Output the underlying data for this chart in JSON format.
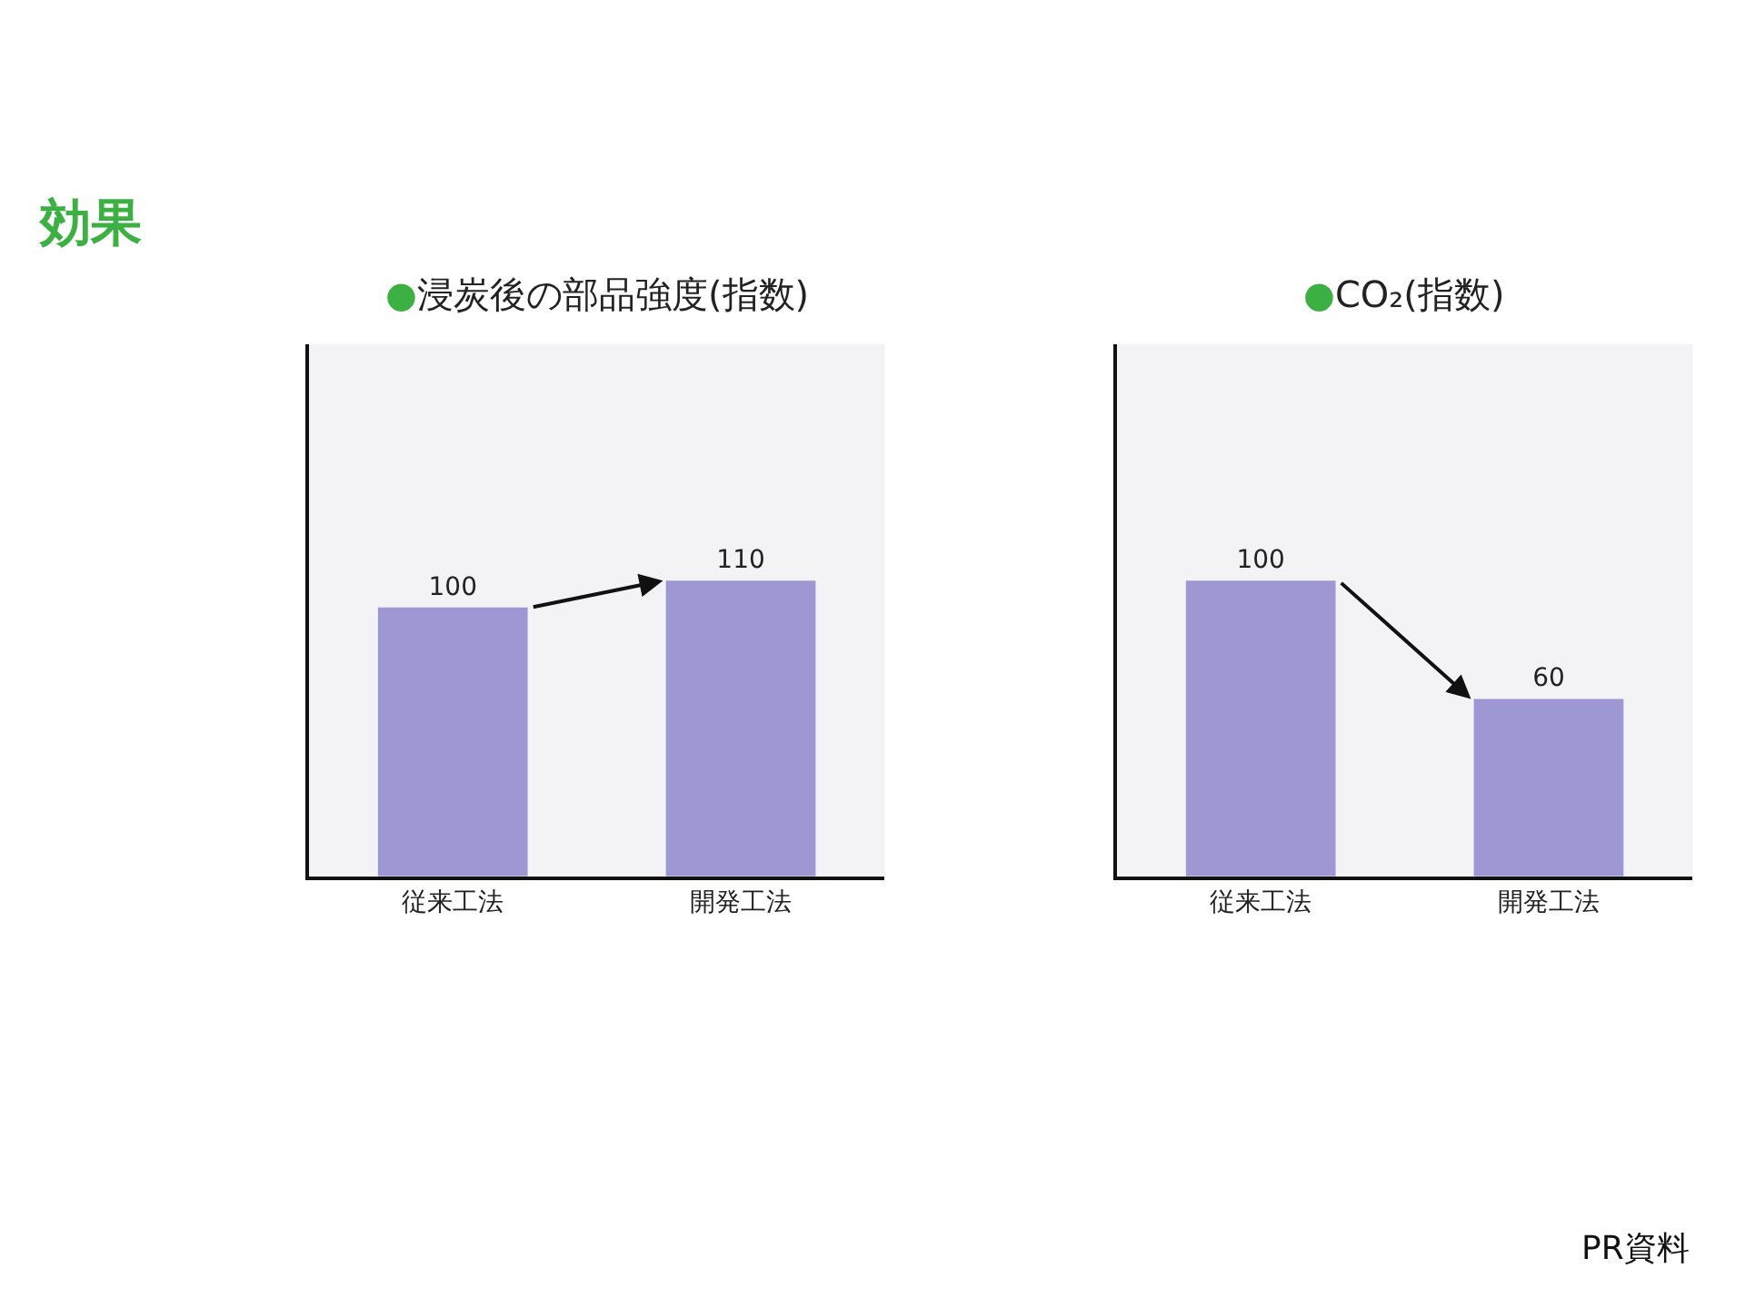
{
  "chart_data": [
    {
      "type": "bar",
      "title": "●浸炭後の部品強度(指数)",
      "categories": [
        "従来工法",
        "開発工法"
      ],
      "values": [
        100,
        110
      ],
      "color": "#9d97d4",
      "data_labels": true,
      "annotations": [
        "効果"
      ]
    },
    {
      "type": "bar",
      "title": "●CO₂(指数)",
      "categories": [
        "従来工法",
        "開発工法"
      ],
      "values": [
        100,
        60
      ],
      "color": "#9d97d4",
      "data_labels": true,
      "annotations": [
        "PR資料"
      ]
    }
  ]
}
